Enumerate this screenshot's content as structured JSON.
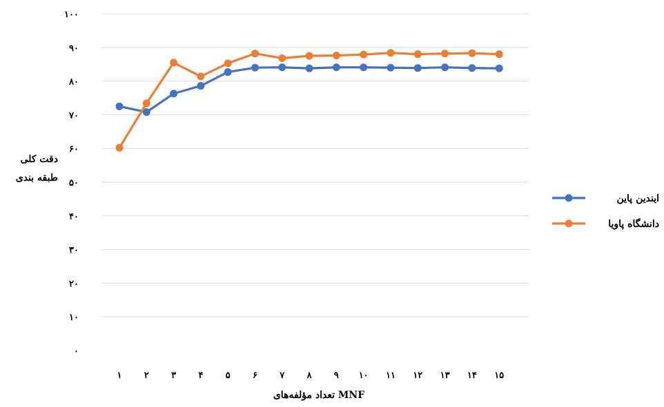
{
  "chart_data": {
    "type": "line",
    "categories": [
      "۱",
      "۲",
      "۳",
      "۴",
      "۵",
      "۶",
      "۷",
      "۸",
      "۹",
      "۱۰",
      "۱۱",
      "۱۲",
      "۱۳",
      "۱۴",
      "۱۵"
    ],
    "x": [
      1,
      2,
      3,
      4,
      5,
      6,
      7,
      8,
      9,
      10,
      11,
      12,
      13,
      14,
      15
    ],
    "series": [
      {
        "name": "ایندین پاین",
        "color": "#4472C4",
        "values": [
          72.5,
          70.8,
          76.3,
          78.6,
          82.7,
          84.0,
          84.1,
          83.8,
          84.1,
          84.1,
          84.0,
          83.9,
          84.1,
          83.9,
          83.8
        ]
      },
      {
        "name": "دانشگاه پاویا",
        "color": "#ED7D31",
        "values": [
          60.2,
          73.4,
          85.5,
          81.4,
          85.3,
          88.2,
          86.8,
          87.5,
          87.6,
          87.9,
          88.4,
          88.0,
          88.2,
          88.3,
          88.0
        ]
      }
    ],
    "ylim": [
      0,
      100
    ],
    "yticks": [
      "۰",
      "۱۰",
      "۲۰",
      "۳۰",
      "۴۰",
      "۵۰",
      "۶۰",
      "۷۰",
      "۸۰",
      "۹۰",
      "۱۰۰"
    ],
    "ytick_values": [
      0,
      10,
      20,
      30,
      40,
      50,
      60,
      70,
      80,
      90,
      100
    ],
    "xlabel": "تعداد مؤلفه‌های MNF",
    "ylabel_line1": "دقت کلی",
    "ylabel_line2": "طبقه بندی",
    "grid": true,
    "legend_position": "right"
  }
}
